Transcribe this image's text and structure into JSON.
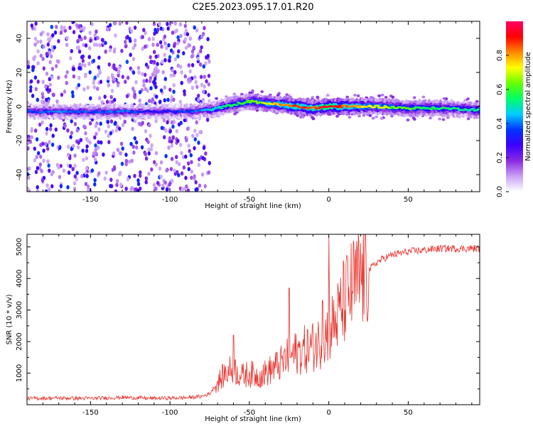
{
  "title": "C2E5.2023.095.17.01.R20",
  "chart_data": [
    {
      "type": "heatmap",
      "title": "C2E5.2023.095.17.01.R20",
      "xlabel": "Height of straight line (km)",
      "ylabel": "Frequency (Hz)",
      "xlim": [
        -190,
        95
      ],
      "ylim": [
        -50,
        50
      ],
      "xticks": [
        -150,
        -100,
        -50,
        0,
        50
      ],
      "yticks": [
        -40,
        -20,
        0,
        20,
        40
      ],
      "colorbar": {
        "label": "Normalized spectral amplitude",
        "range": [
          0,
          1
        ],
        "ticks": [
          0.0,
          0.2,
          0.4,
          0.6,
          0.8
        ],
        "colormap": [
          "#ffffff",
          "#c9a0f5",
          "#8a2be2",
          "#3a00ff",
          "#0033ff",
          "#00ccff",
          "#00ff66",
          "#66ff00",
          "#ffff00",
          "#ff8800",
          "#ff0000",
          "#ff0066"
        ]
      },
      "signal_track": {
        "x": [
          -190,
          -170,
          -150,
          -130,
          -110,
          -90,
          -75,
          -60,
          -50,
          -40,
          -30,
          -20,
          -10,
          0,
          10,
          30,
          50,
          70,
          95
        ],
        "freq_hz": [
          -3,
          -3,
          -3,
          -3,
          -3,
          -3,
          -2,
          1,
          3,
          2,
          1,
          0,
          -1,
          0,
          0,
          0,
          -1,
          -1,
          -2
        ],
        "amplitude": [
          0.35,
          0.4,
          0.35,
          0.4,
          0.3,
          0.35,
          0.45,
          0.55,
          0.6,
          0.7,
          0.8,
          0.9,
          0.85,
          0.95,
          0.85,
          0.7,
          0.6,
          0.55,
          0.5
        ]
      }
    },
    {
      "type": "line",
      "xlabel": "Height of straight line (km)",
      "ylabel": "SNR (10 * v/v)",
      "xlim": [
        -190,
        95
      ],
      "ylim": [
        0,
        5400
      ],
      "xticks": [
        -150,
        -100,
        -50,
        0,
        50
      ],
      "yticks": [
        1000,
        2000,
        3000,
        4000,
        5000
      ],
      "series": [
        {
          "name": "SNR",
          "color": "#e8302a",
          "x": [
            -190,
            -170,
            -150,
            -130,
            -110,
            -90,
            -80,
            -75,
            -70,
            -65,
            -60,
            -55,
            -50,
            -45,
            -40,
            -35,
            -30,
            -25,
            -20,
            -15,
            -10,
            -5,
            0,
            5,
            10,
            15,
            20,
            25,
            30,
            35,
            40,
            50,
            60,
            70,
            80,
            95
          ],
          "values": [
            200,
            210,
            200,
            230,
            200,
            220,
            260,
            350,
            700,
            1000,
            1150,
            900,
            1000,
            900,
            1000,
            1150,
            1300,
            1500,
            1650,
            1750,
            1850,
            2000,
            2350,
            2700,
            3300,
            3700,
            4000,
            4250,
            4500,
            4650,
            4750,
            4850,
            4900,
            4950,
            4950,
            4950
          ]
        }
      ],
      "spikes": [
        {
          "x": 0,
          "value": 5350
        },
        {
          "x": -25,
          "value": 3700
        },
        {
          "x": -60,
          "value": 2200
        },
        {
          "x": -4,
          "value": 3300
        }
      ]
    }
  ]
}
